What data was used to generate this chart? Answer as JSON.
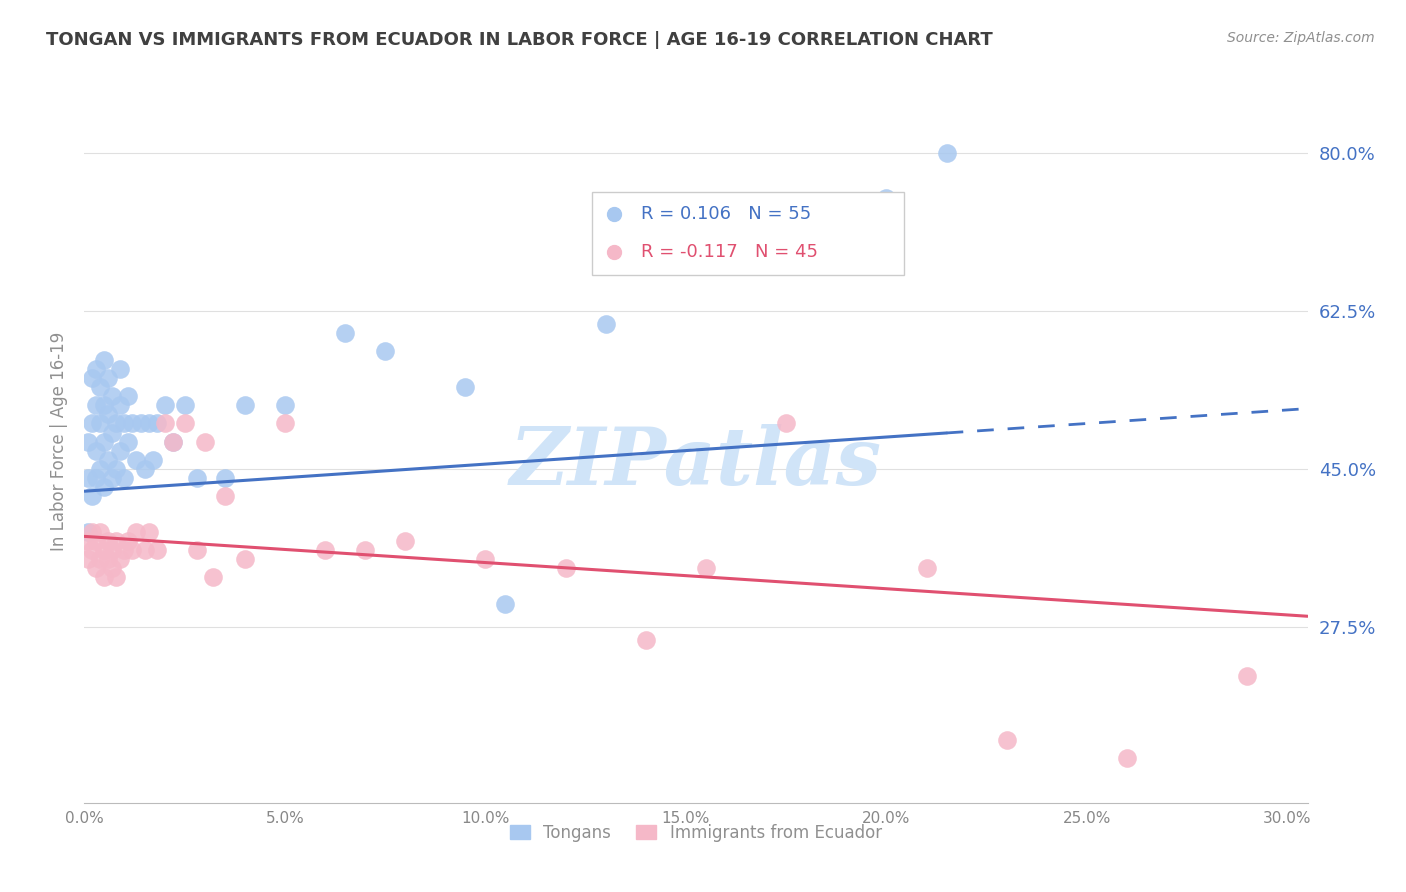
{
  "title": "TONGAN VS IMMIGRANTS FROM ECUADOR IN LABOR FORCE | AGE 16-19 CORRELATION CHART",
  "source": "Source: ZipAtlas.com",
  "ylabel": "In Labor Force | Age 16-19",
  "legend_label1": "Tongans",
  "legend_label2": "Immigrants from Ecuador",
  "r1": 0.106,
  "n1": 55,
  "r2": -0.117,
  "n2": 45,
  "color1": "#a8c8f0",
  "color2": "#f5b8c8",
  "line_color1": "#4472c4",
  "line_color2": "#e05070",
  "right_ytick_labels": [
    "27.5%",
    "45.0%",
    "62.5%",
    "80.0%"
  ],
  "right_ytick_values": [
    0.275,
    0.45,
    0.625,
    0.8
  ],
  "bottom_xtick_labels": [
    "0.0%",
    "5.0%",
    "10.0%",
    "15.0%",
    "20.0%",
    "25.0%",
    "30.0%"
  ],
  "bottom_xtick_values": [
    0.0,
    0.05,
    0.1,
    0.15,
    0.2,
    0.25,
    0.3
  ],
  "xmin": 0.0,
  "xmax": 0.305,
  "ymin": 0.08,
  "ymax": 0.88,
  "tongans_x": [
    0.001,
    0.001,
    0.001,
    0.002,
    0.002,
    0.002,
    0.003,
    0.003,
    0.003,
    0.003,
    0.004,
    0.004,
    0.004,
    0.005,
    0.005,
    0.005,
    0.005,
    0.006,
    0.006,
    0.006,
    0.007,
    0.007,
    0.007,
    0.008,
    0.008,
    0.009,
    0.009,
    0.009,
    0.01,
    0.01,
    0.011,
    0.011,
    0.012,
    0.013,
    0.014,
    0.015,
    0.016,
    0.017,
    0.018,
    0.02,
    0.022,
    0.025,
    0.028,
    0.035,
    0.04,
    0.05,
    0.065,
    0.075,
    0.095,
    0.105,
    0.13,
    0.155,
    0.18,
    0.2,
    0.215
  ],
  "tongans_y": [
    0.38,
    0.44,
    0.48,
    0.42,
    0.5,
    0.55,
    0.44,
    0.47,
    0.52,
    0.56,
    0.45,
    0.5,
    0.54,
    0.43,
    0.48,
    0.52,
    0.57,
    0.46,
    0.51,
    0.55,
    0.44,
    0.49,
    0.53,
    0.45,
    0.5,
    0.47,
    0.52,
    0.56,
    0.44,
    0.5,
    0.48,
    0.53,
    0.5,
    0.46,
    0.5,
    0.45,
    0.5,
    0.46,
    0.5,
    0.52,
    0.48,
    0.52,
    0.44,
    0.44,
    0.52,
    0.52,
    0.6,
    0.58,
    0.54,
    0.3,
    0.61,
    0.72,
    0.68,
    0.75,
    0.8
  ],
  "ecuador_x": [
    0.001,
    0.001,
    0.002,
    0.002,
    0.003,
    0.003,
    0.004,
    0.004,
    0.005,
    0.005,
    0.006,
    0.006,
    0.007,
    0.007,
    0.008,
    0.008,
    0.009,
    0.01,
    0.011,
    0.012,
    0.013,
    0.015,
    0.016,
    0.018,
    0.02,
    0.022,
    0.025,
    0.028,
    0.03,
    0.032,
    0.035,
    0.04,
    0.05,
    0.06,
    0.07,
    0.08,
    0.1,
    0.12,
    0.14,
    0.155,
    0.175,
    0.21,
    0.23,
    0.26,
    0.29
  ],
  "ecuador_y": [
    0.37,
    0.35,
    0.36,
    0.38,
    0.34,
    0.37,
    0.35,
    0.38,
    0.33,
    0.36,
    0.35,
    0.37,
    0.34,
    0.36,
    0.33,
    0.37,
    0.35,
    0.36,
    0.37,
    0.36,
    0.38,
    0.36,
    0.38,
    0.36,
    0.5,
    0.48,
    0.5,
    0.36,
    0.48,
    0.33,
    0.42,
    0.35,
    0.5,
    0.36,
    0.36,
    0.37,
    0.35,
    0.34,
    0.26,
    0.34,
    0.5,
    0.34,
    0.15,
    0.13,
    0.22
  ],
  "background_color": "#ffffff",
  "grid_color": "#e0e0e0",
  "title_color": "#404040",
  "tick_color_blue": "#4472c4",
  "watermark_text": "ZIPatlas",
  "watermark_color": "#d0e4f8"
}
